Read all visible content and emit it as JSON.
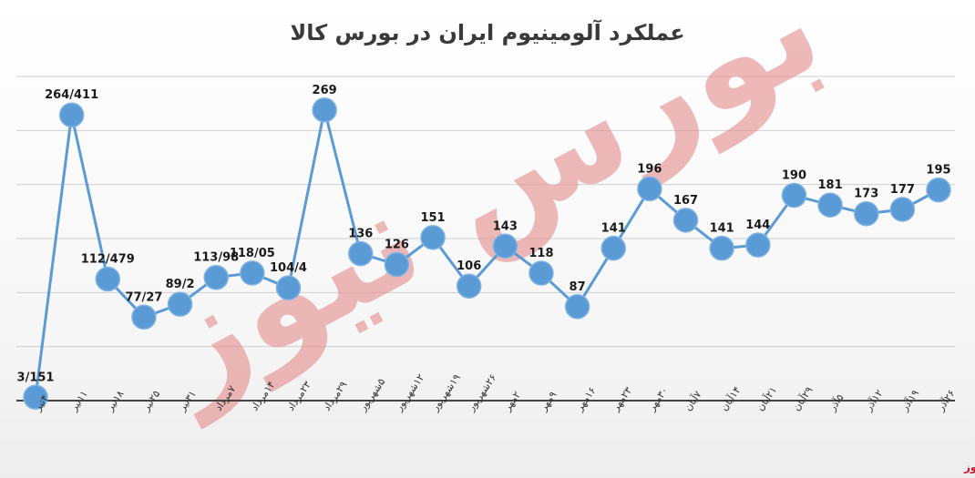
{
  "colors": {
    "line": "#5b9bd5",
    "marker": "#5b9bd5",
    "marker_stroke": "#7fb2e4",
    "watermark": "#e58f8f",
    "brand": "#c8102e"
  },
  "watermark_text": "بورس نیوز",
  "chart_data": {
    "type": "line",
    "title": "عملکرد آلومینیوم ایران در بورس کالا",
    "xlabel": "",
    "ylabel": "",
    "ylim": [
      0,
      300
    ],
    "grid": true,
    "legend": "none",
    "categories": [
      "۴تیر",
      "۱۱تیر",
      "۱۸تیر",
      "۲۵تیر",
      "۳۱تیر",
      "۷مرداد",
      "۱۴مرداد",
      "۲۳مرداد",
      "۲۹مرداد",
      "۵شهریور",
      "۱۲شهریور",
      "۱۹شهریور",
      "۲۶شهریور",
      "۲مهر",
      "۹مهر",
      "۱۶مهر",
      "۲۳مهر",
      "۳۰مهر",
      "۷آبان",
      "۱۴آبان",
      "۲۱آبان",
      "۲۹آبان",
      "۵آذر",
      "۱۲آذر",
      "۱۹آذر",
      "۲۶آذر"
    ],
    "values": [
      3.151,
      264.411,
      112.479,
      77.27,
      89.2,
      113.98,
      118.05,
      104.4,
      269,
      136,
      126,
      151,
      106,
      143,
      118,
      87,
      141,
      196,
      167,
      141,
      144,
      190,
      181,
      173,
      177,
      195
    ],
    "data_labels": [
      "3/151",
      "264/411",
      "112/479",
      "77/27",
      "89/2",
      "113/98",
      "118/05",
      "104/4",
      "269",
      "136",
      "126",
      "151",
      "106",
      "143",
      "118",
      "87",
      "141",
      "196",
      "167",
      "141",
      "144",
      "190",
      "181",
      "173",
      "177",
      "195"
    ]
  },
  "footer_brand": "بورس نیوز"
}
